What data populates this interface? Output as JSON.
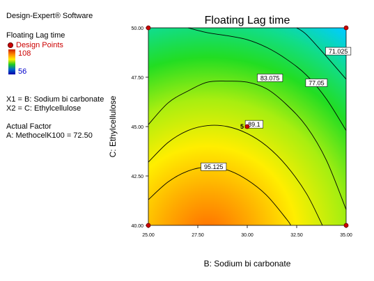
{
  "software": "Design-Expert® Software",
  "response_name": "Floating Lag time",
  "design_points_label": "Design Points",
  "colorbar": {
    "max": "108",
    "min": "56"
  },
  "factors": {
    "x1": "X1 = B: Sodium bi carbonate",
    "x2": "X2 = C: Ethylcellulose"
  },
  "actual_factor": {
    "title": "Actual Factor",
    "value": "A: MethocelK100 = 72.50"
  },
  "chart_data": {
    "type": "contour",
    "title": "Floating Lag time",
    "xlabel": "B: Sodium bi carbonate",
    "ylabel": "C: Ethylcellulose",
    "xlim": [
      25.0,
      35.0
    ],
    "ylim": [
      40.0,
      50.0
    ],
    "xticks": [
      "25.00",
      "27.50",
      "30.00",
      "32.50",
      "35.00"
    ],
    "yticks": [
      "40.00",
      "42.50",
      "45.00",
      "47.50",
      "50.00"
    ],
    "colors": {
      "high": "#ff6600",
      "mid": "#22dd22",
      "low": "#00ccff"
    },
    "contours": [
      {
        "level": "95.125",
        "points": [
          [
            25,
            41.3
          ],
          [
            26,
            42.2
          ],
          [
            27,
            42.75
          ],
          [
            28,
            42.95
          ],
          [
            29,
            42.8
          ],
          [
            30,
            42.3
          ],
          [
            31,
            41.5
          ],
          [
            32,
            40.3
          ],
          [
            32.2,
            40
          ]
        ],
        "label_at": [
          28.3,
          42.95
        ]
      },
      {
        "level": "89.1",
        "points": [
          [
            25,
            43.2
          ],
          [
            26,
            44.2
          ],
          [
            27,
            44.8
          ],
          [
            28,
            45.05
          ],
          [
            29,
            45.0
          ],
          [
            30,
            44.65
          ],
          [
            31,
            44.0
          ],
          [
            32,
            43.0
          ],
          [
            33,
            41.6
          ],
          [
            33.8,
            40
          ]
        ],
        "label_at": [
          30.35,
          45.1
        ]
      },
      {
        "level": "83.075",
        "points": [
          [
            25,
            45.1
          ],
          [
            26,
            46.2
          ],
          [
            27,
            46.8
          ],
          [
            28,
            47.25
          ],
          [
            29,
            47.3
          ],
          [
            30,
            47.25
          ],
          [
            31,
            46.9
          ],
          [
            32,
            46.1
          ],
          [
            33,
            45.0
          ],
          [
            34,
            43.3
          ],
          [
            35,
            40.8
          ]
        ],
        "label_at": [
          31.15,
          47.45
        ]
      },
      {
        "level": "77.05",
        "points": [
          [
            27,
            50
          ],
          [
            28,
            49.75
          ],
          [
            29,
            49.6
          ],
          [
            30,
            49.4
          ],
          [
            31,
            49.0
          ],
          [
            32,
            48.4
          ],
          [
            33,
            47.6
          ],
          [
            34,
            46.4
          ],
          [
            35,
            44.8
          ]
        ],
        "label_at": [
          33.5,
          47.2
        ]
      },
      {
        "level": "71.025",
        "points": [
          [
            32.5,
            50
          ],
          [
            33,
            49.65
          ],
          [
            34,
            48.55
          ],
          [
            35,
            47.4
          ]
        ],
        "label_at": [
          34.6,
          48.8
        ]
      }
    ],
    "design_points": [
      {
        "x": 25,
        "y": 50,
        "count": ""
      },
      {
        "x": 35,
        "y": 50,
        "count": ""
      },
      {
        "x": 30,
        "y": 45,
        "count": "5"
      },
      {
        "x": 25,
        "y": 40,
        "count": ""
      },
      {
        "x": 35,
        "y": 40,
        "count": ""
      }
    ]
  }
}
